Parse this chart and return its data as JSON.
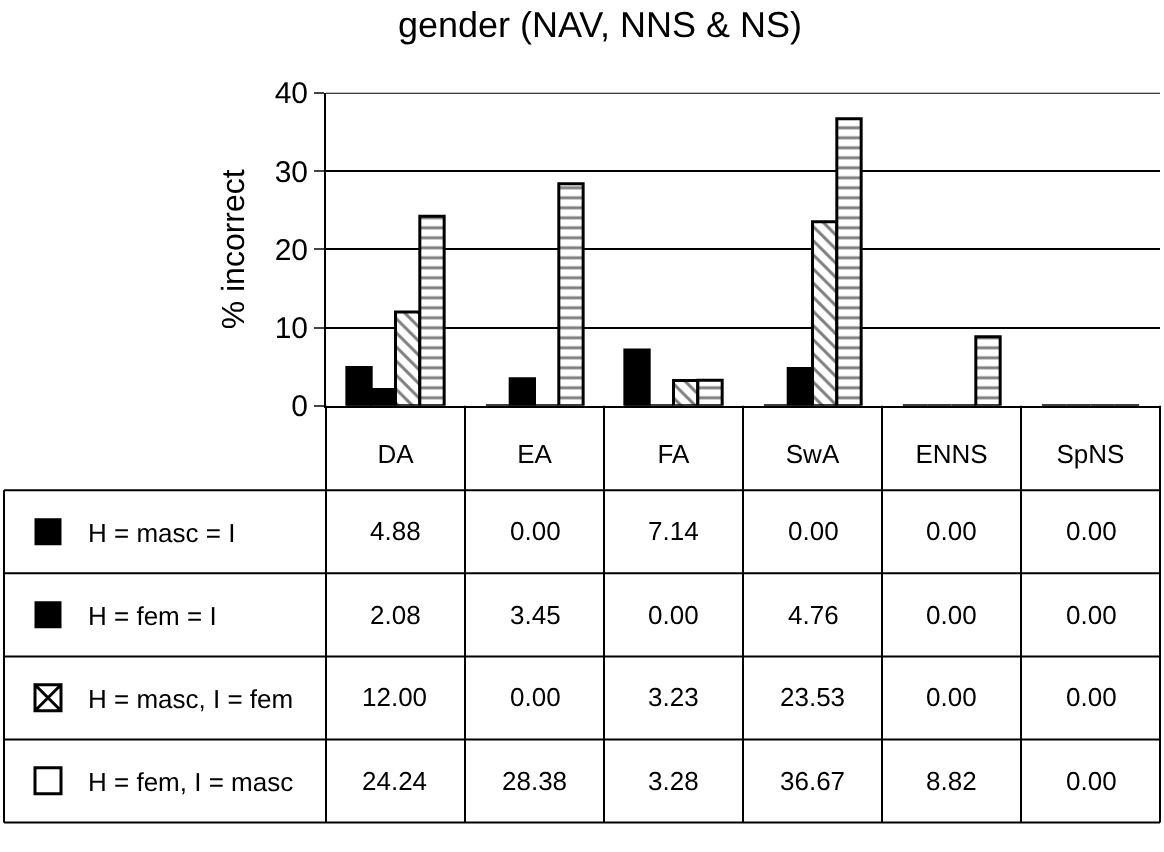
{
  "chart_data": {
    "type": "bar",
    "title": "gender (NAV, NNS & NS)",
    "ylabel": "% incorrect",
    "categories": [
      "DA",
      "EA",
      "FA",
      "SwA",
      "ENNS",
      "SpNS"
    ],
    "series": [
      {
        "name": "H = masc = I",
        "color": "#000000",
        "values": [
          4.88,
          0.0,
          7.14,
          0.0,
          0.0,
          0.0
        ],
        "value_labels": [
          "4.88",
          "0.00",
          "7.14",
          "0.00",
          "0.00",
          "0.00"
        ]
      },
      {
        "name": "H = fem = I",
        "color": "#000000",
        "values": [
          2.08,
          3.45,
          0.0,
          4.76,
          0.0,
          0.0
        ],
        "value_labels": [
          "2.08",
          "3.45",
          "0.00",
          "4.76",
          "0.00",
          "0.00"
        ]
      },
      {
        "name": "H = masc, I = fem",
        "color": "#000000",
        "values": [
          12.0,
          0.0,
          3.23,
          23.53,
          0.0,
          0.0
        ],
        "value_labels": [
          "12.00",
          "0.00",
          "3.23",
          "23.53",
          "0.00",
          "0.00"
        ]
      },
      {
        "name": "H = fem, I = masc",
        "color": "#000000",
        "values": [
          24.24,
          28.38,
          3.28,
          36.67,
          8.82,
          0.0
        ],
        "value_labels": [
          "24.24",
          "28.38",
          "3.28",
          "36.67",
          "8.82",
          "0.00"
        ]
      }
    ],
    "ylim": [
      0,
      40
    ],
    "yticks": [
      0,
      10,
      20,
      30,
      40
    ],
    "grid": "y",
    "legend": "bottom left"
  }
}
